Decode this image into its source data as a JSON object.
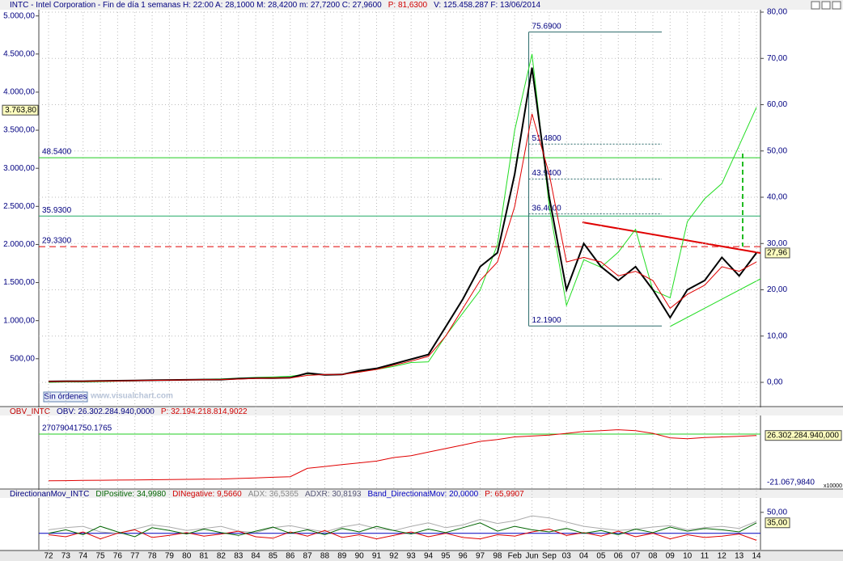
{
  "chart_data": [
    {
      "type": "line",
      "title_parts": [
        {
          "text": "INTC - Intel Corporation - Fin de día 1 semanas  H: 22:00  A: 28,1000  M: 28,4200  m: 27,7200  C: 27,9600",
          "color": "#000080"
        },
        {
          "text": "P: 81,6300",
          "color": "#d00000"
        },
        {
          "text": "V: 125.458.287  F: 13/06/2014",
          "color": "#000080"
        }
      ],
      "order_button": "Sin órdenes",
      "watermark": "www.visualchart.com",
      "categories": [
        "72",
        "73",
        "74",
        "75",
        "76",
        "77",
        "78",
        "79",
        "80",
        "81",
        "82",
        "83",
        "84",
        "85",
        "86",
        "87",
        "88",
        "89",
        "90",
        "91",
        "92",
        "93",
        "94",
        "95",
        "96",
        "97",
        "98",
        "Feb",
        "Jun",
        "Sep",
        "03",
        "04",
        "05",
        "06",
        "07",
        "08",
        "09",
        "10",
        "11",
        "12",
        "13",
        "14"
      ],
      "series": [
        {
          "color": "#22dd22",
          "values": [
            190,
            195,
            195,
            200,
            205,
            210,
            215,
            220,
            225,
            230,
            235,
            245,
            255,
            260,
            270,
            300,
            290,
            295,
            330,
            360,
            400,
            450,
            460,
            800,
            1100,
            1400,
            2000,
            3500,
            4500,
            2500,
            1200,
            1800,
            1700,
            1900,
            2200,
            1400,
            1300,
            2300,
            2600,
            2800,
            3300,
            3800
          ]
        },
        {
          "color": "#000000",
          "axis": "y2",
          "values": [
            0.2,
            0.25,
            0.25,
            0.3,
            0.35,
            0.4,
            0.45,
            0.5,
            0.55,
            0.6,
            0.6,
            0.8,
            0.9,
            0.9,
            1.0,
            2.0,
            1.6,
            1.7,
            2.5,
            3.0,
            4.0,
            5.0,
            6.0,
            12,
            18,
            25,
            28,
            45,
            68,
            40,
            20,
            30,
            25,
            22,
            25,
            20,
            14,
            20,
            22,
            27,
            23,
            27.96
          ]
        },
        {
          "color": "#e00000",
          "axis": "y2",
          "values": [
            0.2,
            0.22,
            0.24,
            0.28,
            0.32,
            0.37,
            0.42,
            0.47,
            0.52,
            0.57,
            0.6,
            0.7,
            0.85,
            0.9,
            0.95,
            1.5,
            1.7,
            1.7,
            2.2,
            2.8,
            3.7,
            4.6,
            5.6,
            10,
            16,
            22,
            26,
            38,
            58,
            45,
            26,
            27,
            26,
            23,
            24,
            22,
            16,
            19,
            21,
            25,
            24,
            26
          ]
        }
      ],
      "ylim": [
        190,
        5050
      ],
      "yticks": [
        {
          "value": 500,
          "label": "500,00"
        },
        {
          "value": 1000,
          "label": "1.000,00"
        },
        {
          "value": 1500,
          "label": "1.500,00"
        },
        {
          "value": 2000,
          "label": "2.000,00"
        },
        {
          "value": 2500,
          "label": "2.500,00"
        },
        {
          "value": 3000,
          "label": "3.000,00"
        },
        {
          "value": 3500,
          "label": "3.500,00"
        },
        {
          "value": 4000,
          "label": "4.000,00"
        },
        {
          "value": 4500,
          "label": "4.500,00"
        },
        {
          "value": 5000,
          "label": "5.000,00"
        }
      ],
      "y2lim": [
        0,
        80
      ],
      "y2ticks": [
        {
          "value": 0,
          "label": "0,00"
        },
        {
          "value": 10,
          "label": "10,00"
        },
        {
          "value": 20,
          "label": "20,00"
        },
        {
          "value": 30,
          "label": "30,00"
        },
        {
          "value": 40,
          "label": "40,00"
        },
        {
          "value": 50,
          "label": "50,00"
        },
        {
          "value": 60,
          "label": "60,00"
        },
        {
          "value": 70,
          "label": "70,00"
        },
        {
          "value": 80,
          "label": "80,00"
        }
      ],
      "levels": [
        {
          "value": 48.54,
          "label": "48.5400",
          "color": "#22cc22",
          "dashed": false
        },
        {
          "value": 35.93,
          "label": "35.9300",
          "color": "#22aa66",
          "dashed": false
        },
        {
          "value": 29.33,
          "label": "29.3300",
          "color": "#e00000",
          "dashed": true
        }
      ],
      "fibonacci": [
        {
          "value": 75.69,
          "label": "75.6900",
          "dashed": false
        },
        {
          "value": 51.48,
          "label": "51.4800",
          "dashed": true
        },
        {
          "value": 43.94,
          "label": "43.9400",
          "dashed": true
        },
        {
          "value": 36.4,
          "label": "36.4000",
          "dashed": true
        },
        {
          "value": 12.19,
          "label": "12.1900",
          "dashed": false
        }
      ],
      "left_badge": {
        "value": 3763.8,
        "label": "3.763,80"
      },
      "right_badge": {
        "value": 27.96,
        "label": "27,96"
      },
      "grid": true
    },
    {
      "type": "line",
      "title_parts": [
        {
          "text": "OBV_INTC",
          "color": "#c00000"
        },
        {
          "text": "OBV: 26.302.284.940,0000",
          "color": "#000080"
        },
        {
          "text": "P: 32.194.218.814,9022",
          "color": "#d00000"
        }
      ],
      "series": [
        {
          "color": "#e00000",
          "values": [
            1000000000,
            1100000000,
            1200000000,
            1300000000,
            1400000000,
            1500000000,
            1600000000,
            1700000000,
            1800000000,
            1900000000,
            2000000000,
            2300000000,
            2600000000,
            3000000000,
            3300000000,
            8000000000,
            9000000000,
            10000000000,
            11000000000,
            12000000000,
            14000000000,
            15000000000,
            17000000000,
            19000000000,
            21000000000,
            23000000000,
            24000000000,
            25500000000,
            26000000000,
            26500000000,
            27500000000,
            28500000000,
            29000000000,
            29500000000,
            29000000000,
            27500000000,
            25000000000,
            24500000000,
            25200000000,
            25500000000,
            25800000000,
            26302284940
          ]
        }
      ],
      "ylim": [
        -21067.984,
        37000000000
      ],
      "level": {
        "value": 27079041750.1765,
        "label": "27079041750.1765",
        "color": "#22cc22"
      },
      "right_badge": {
        "value": 26302284940,
        "label": "26.302.284.940,000"
      },
      "bottom_label": {
        "value": -21067.984,
        "label": "-21.067,9840"
      },
      "scale_note": "x10000"
    },
    {
      "type": "line",
      "title_parts": [
        {
          "text": "DirectionanMov_INTC",
          "color": "#000080"
        },
        {
          "text": "DIPositive: 34,9980",
          "color": "#006400"
        },
        {
          "text": "DINegative: 9,5660",
          "color": "#d00000"
        },
        {
          "text": "ADX: 36,5365",
          "color": "#888888"
        },
        {
          "text": "ADXR: 30,8193",
          "color": "#555577"
        },
        {
          "text": "Band_DirectionalMov: 20,0000",
          "color": "#0000c0"
        },
        {
          "text": "P: 65,9907",
          "color": "#d00000"
        }
      ],
      "series": [
        {
          "color": "#aaaaaa",
          "values": [
            25,
            28,
            30,
            22,
            20,
            26,
            32,
            29,
            24,
            27,
            30,
            23,
            21,
            28,
            31,
            26,
            22,
            29,
            33,
            27,
            24,
            30,
            35,
            28,
            32,
            40,
            34,
            38,
            45,
            42,
            36,
            30,
            27,
            24,
            26,
            29,
            31,
            25,
            28,
            30,
            27,
            37
          ]
        },
        {
          "color": "#e00000",
          "values": [
            18,
            15,
            22,
            12,
            20,
            25,
            14,
            17,
            21,
            16,
            19,
            23,
            15,
            13,
            22,
            16,
            24,
            14,
            18,
            12,
            17,
            22,
            15,
            20,
            14,
            12,
            18,
            16,
            22,
            26,
            17,
            21,
            16,
            23,
            15,
            20,
            12,
            18,
            14,
            16,
            19,
            10
          ]
        },
        {
          "color": "#006400",
          "values": [
            20,
            25,
            18,
            30,
            22,
            15,
            28,
            24,
            19,
            26,
            21,
            17,
            23,
            29,
            20,
            25,
            18,
            27,
            22,
            30,
            24,
            19,
            26,
            21,
            28,
            35,
            23,
            30,
            25,
            22,
            27,
            20,
            24,
            18,
            26,
            21,
            29,
            23,
            27,
            25,
            22,
            35
          ]
        }
      ],
      "band": {
        "value": 20,
        "color": "#0000c0"
      },
      "ylim": [
        0,
        66
      ],
      "yticks": [
        {
          "value": 50,
          "label": "50,00"
        }
      ],
      "right_badge": {
        "value": 35,
        "label": "35,00"
      }
    }
  ]
}
